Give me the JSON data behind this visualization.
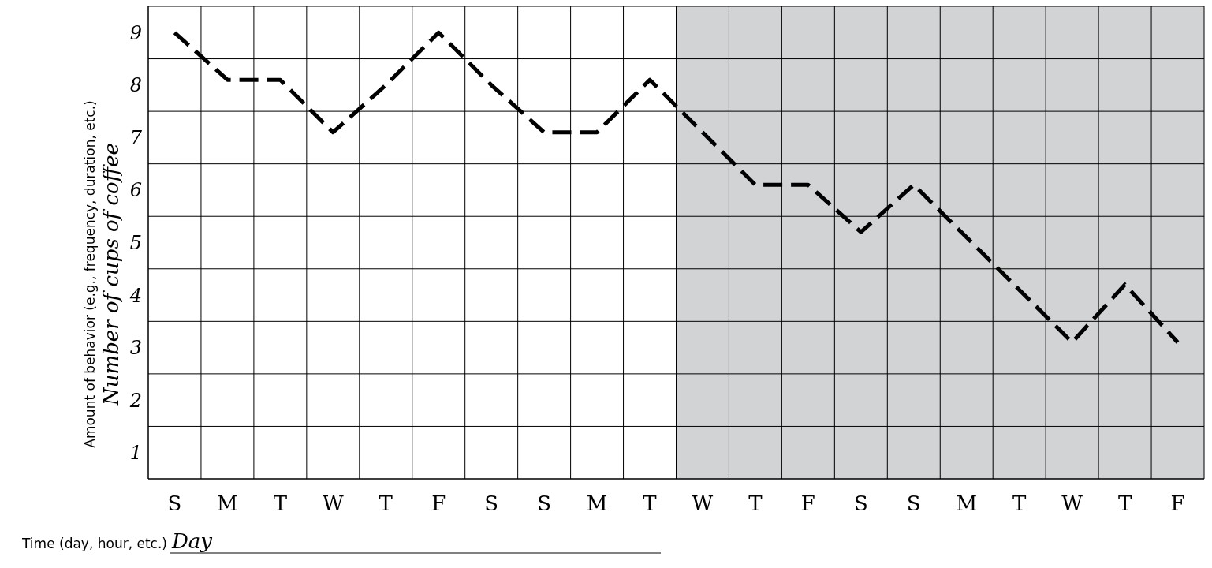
{
  "chart_data": {
    "type": "line",
    "xlabel": "Time (day, hour, etc.)",
    "ylabel": "Amount of behavior (e.g., frequency, duration, etc.)",
    "annotations": [
      "Number of cups of coffee",
      "Day"
    ],
    "categories": [
      "S",
      "M",
      "T",
      "W",
      "T",
      "F",
      "S",
      "S",
      "M",
      "T",
      "W",
      "T",
      "F",
      "S",
      "S",
      "M",
      "T",
      "W",
      "T",
      "F"
    ],
    "ylim": [
      0.5,
      9.5
    ],
    "yticks": [
      {
        "value": 0.5,
        "label": null
      },
      1,
      {
        "value": 1.5,
        "label": null
      },
      2,
      {
        "value": 2.5,
        "label": null
      },
      3,
      {
        "value": 3.5,
        "label": null
      },
      4,
      {
        "value": 4.5,
        "label": null
      },
      5,
      {
        "value": 5.5,
        "label": null
      },
      6,
      {
        "value": 6.5,
        "label": null
      },
      7,
      {
        "value": 7.5,
        "label": null
      },
      8,
      {
        "value": 8.5,
        "label": null
      },
      9,
      {
        "value": 9.5,
        "label": null
      }
    ],
    "grid": true,
    "marker": "none",
    "line_style": "dashed",
    "series": [
      {
        "color": "#000000",
        "values": [
          9,
          8.1,
          8.1,
          7.1,
          8.0,
          9,
          8.0,
          7.1,
          7.1,
          8.1,
          7.1,
          6.1,
          6.1,
          5.2,
          6.1,
          5.1,
          4.1,
          3.1,
          4.2,
          3.1
        ]
      }
    ]
  }
}
